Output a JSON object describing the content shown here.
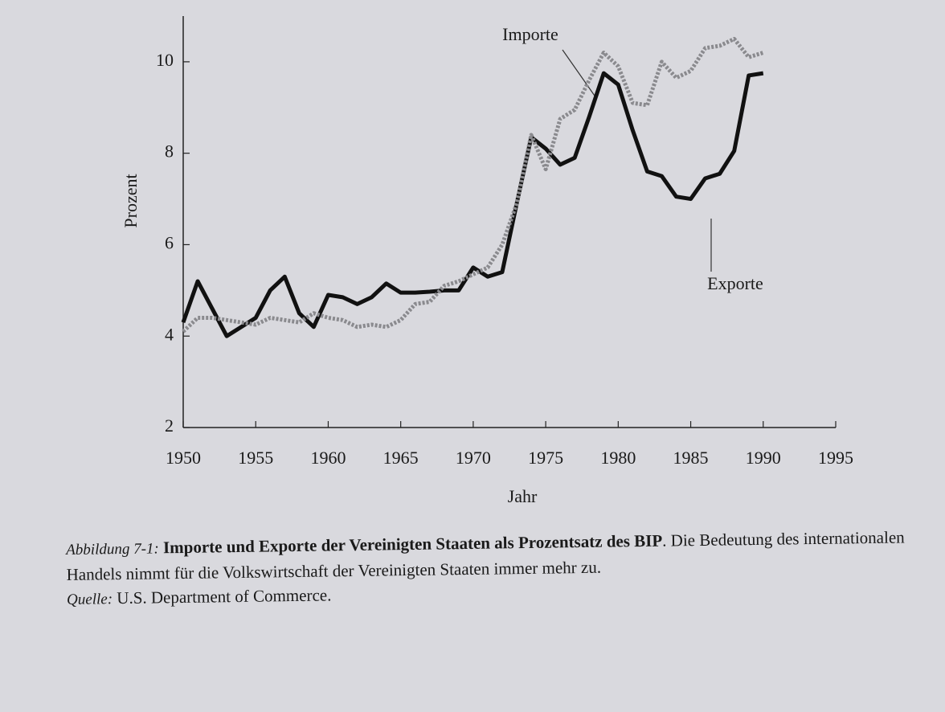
{
  "chart_data": {
    "type": "line",
    "y_label": "Prozent",
    "x_label": "Jahr",
    "x": [
      1950,
      1951,
      1952,
      1953,
      1954,
      1955,
      1956,
      1957,
      1958,
      1959,
      1960,
      1961,
      1962,
      1963,
      1964,
      1965,
      1966,
      1967,
      1968,
      1969,
      1970,
      1971,
      1972,
      1973,
      1974,
      1975,
      1976,
      1977,
      1978,
      1979,
      1980,
      1981,
      1982,
      1983,
      1984,
      1985,
      1986,
      1987,
      1988,
      1989,
      1990
    ],
    "series": [
      {
        "name": "Exporte",
        "color": "#111111",
        "values": [
          4.3,
          5.2,
          4.6,
          4.0,
          4.2,
          4.4,
          5.0,
          5.3,
          4.5,
          4.2,
          4.9,
          4.85,
          4.7,
          4.85,
          5.15,
          4.95,
          4.95,
          4.97,
          5.0,
          5.0,
          5.5,
          5.3,
          5.4,
          6.9,
          8.35,
          8.1,
          7.75,
          7.9,
          8.8,
          9.75,
          9.5,
          8.5,
          7.6,
          7.5,
          7.05,
          7.0,
          7.45,
          7.55,
          8.05,
          9.7,
          9.75
        ]
      },
      {
        "name": "Importe",
        "color": "#8a8a8e",
        "values": [
          4.1,
          4.4,
          4.4,
          4.35,
          4.3,
          4.25,
          4.4,
          4.35,
          4.3,
          4.5,
          4.4,
          4.35,
          4.2,
          4.25,
          4.2,
          4.35,
          4.7,
          4.75,
          5.1,
          5.2,
          5.35,
          5.5,
          6.0,
          6.9,
          8.4,
          7.65,
          8.75,
          8.95,
          9.6,
          10.2,
          9.9,
          9.1,
          9.05,
          10.0,
          9.65,
          9.8,
          10.3,
          10.35,
          10.5,
          10.1,
          10.2
        ]
      }
    ],
    "xlim": [
      1950,
      1995
    ],
    "xticks": [
      1950,
      1955,
      1960,
      1965,
      1970,
      1975,
      1980,
      1985,
      1990,
      1995
    ],
    "ylim": [
      2,
      11
    ],
    "yticks": [
      2,
      4,
      6,
      8,
      10
    ],
    "caption": {
      "label": "Abbildung 7-1:",
      "title": "Importe und Exporte der Vereinigten Staaten als Prozentsatz des BIP",
      "text": ". Die Bedeutung des internationalen Handels nimmt für die Volkswirtschaft der Vereinigten Staaten immer mehr zu.",
      "source_label": "Quelle:",
      "source": "U.S. Department of Commerce."
    }
  }
}
